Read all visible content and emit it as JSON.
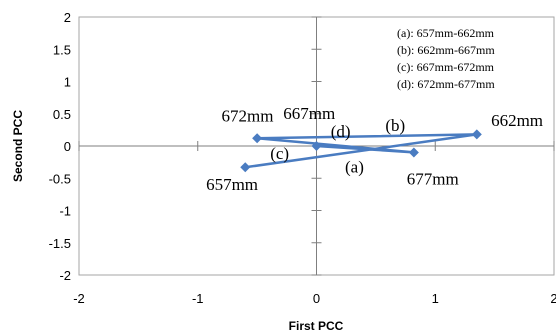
{
  "chart_data": {
    "type": "scatter",
    "xlabel": "First PCC",
    "ylabel": "Second PCC",
    "xlim": [
      -2,
      2
    ],
    "ylim": [
      -2,
      2
    ],
    "x_ticks": [
      "-2",
      "-1",
      "0",
      "1",
      "2"
    ],
    "y_ticks": [
      "2",
      "1.5",
      "1",
      "0.5",
      "0",
      "-0.5",
      "-1",
      "-1.5",
      "-2"
    ],
    "grid": false,
    "series_color": "#4a7cc1",
    "marker": "diamond-icon",
    "points": [
      {
        "x": -0.6,
        "y": -0.33
      },
      {
        "x": 1.35,
        "y": 0.18
      },
      {
        "x": -0.5,
        "y": 0.12
      },
      {
        "x": 0.0,
        "y": 0.0
      },
      {
        "x": 0.82,
        "y": -0.1
      }
    ],
    "series_path_order": [
      0,
      1,
      2,
      4,
      3
    ],
    "annotations": [
      {
        "text": "657mm",
        "x": -0.93,
        "y": -0.68
      },
      {
        "text": "662mm",
        "x": 1.47,
        "y": 0.31
      },
      {
        "text": "672mm",
        "x": -0.8,
        "y": 0.38
      },
      {
        "text": "667mm",
        "x": -0.28,
        "y": 0.42
      },
      {
        "text": "677mm",
        "x": 0.76,
        "y": -0.6
      },
      {
        "text": "(a)",
        "x": 0.24,
        "y": -0.41
      },
      {
        "text": "(b)",
        "x": 0.58,
        "y": 0.23
      },
      {
        "text": "(c)",
        "x": -0.39,
        "y": -0.2
      },
      {
        "text": "(d)",
        "x": 0.12,
        "y": 0.14
      }
    ],
    "legend": {
      "position": "top-right",
      "entries": [
        "(a): 657mm-662mm",
        "(b): 662mm-667mm",
        "(c): 667mm-672mm",
        "(d): 672mm-677mm"
      ]
    }
  }
}
